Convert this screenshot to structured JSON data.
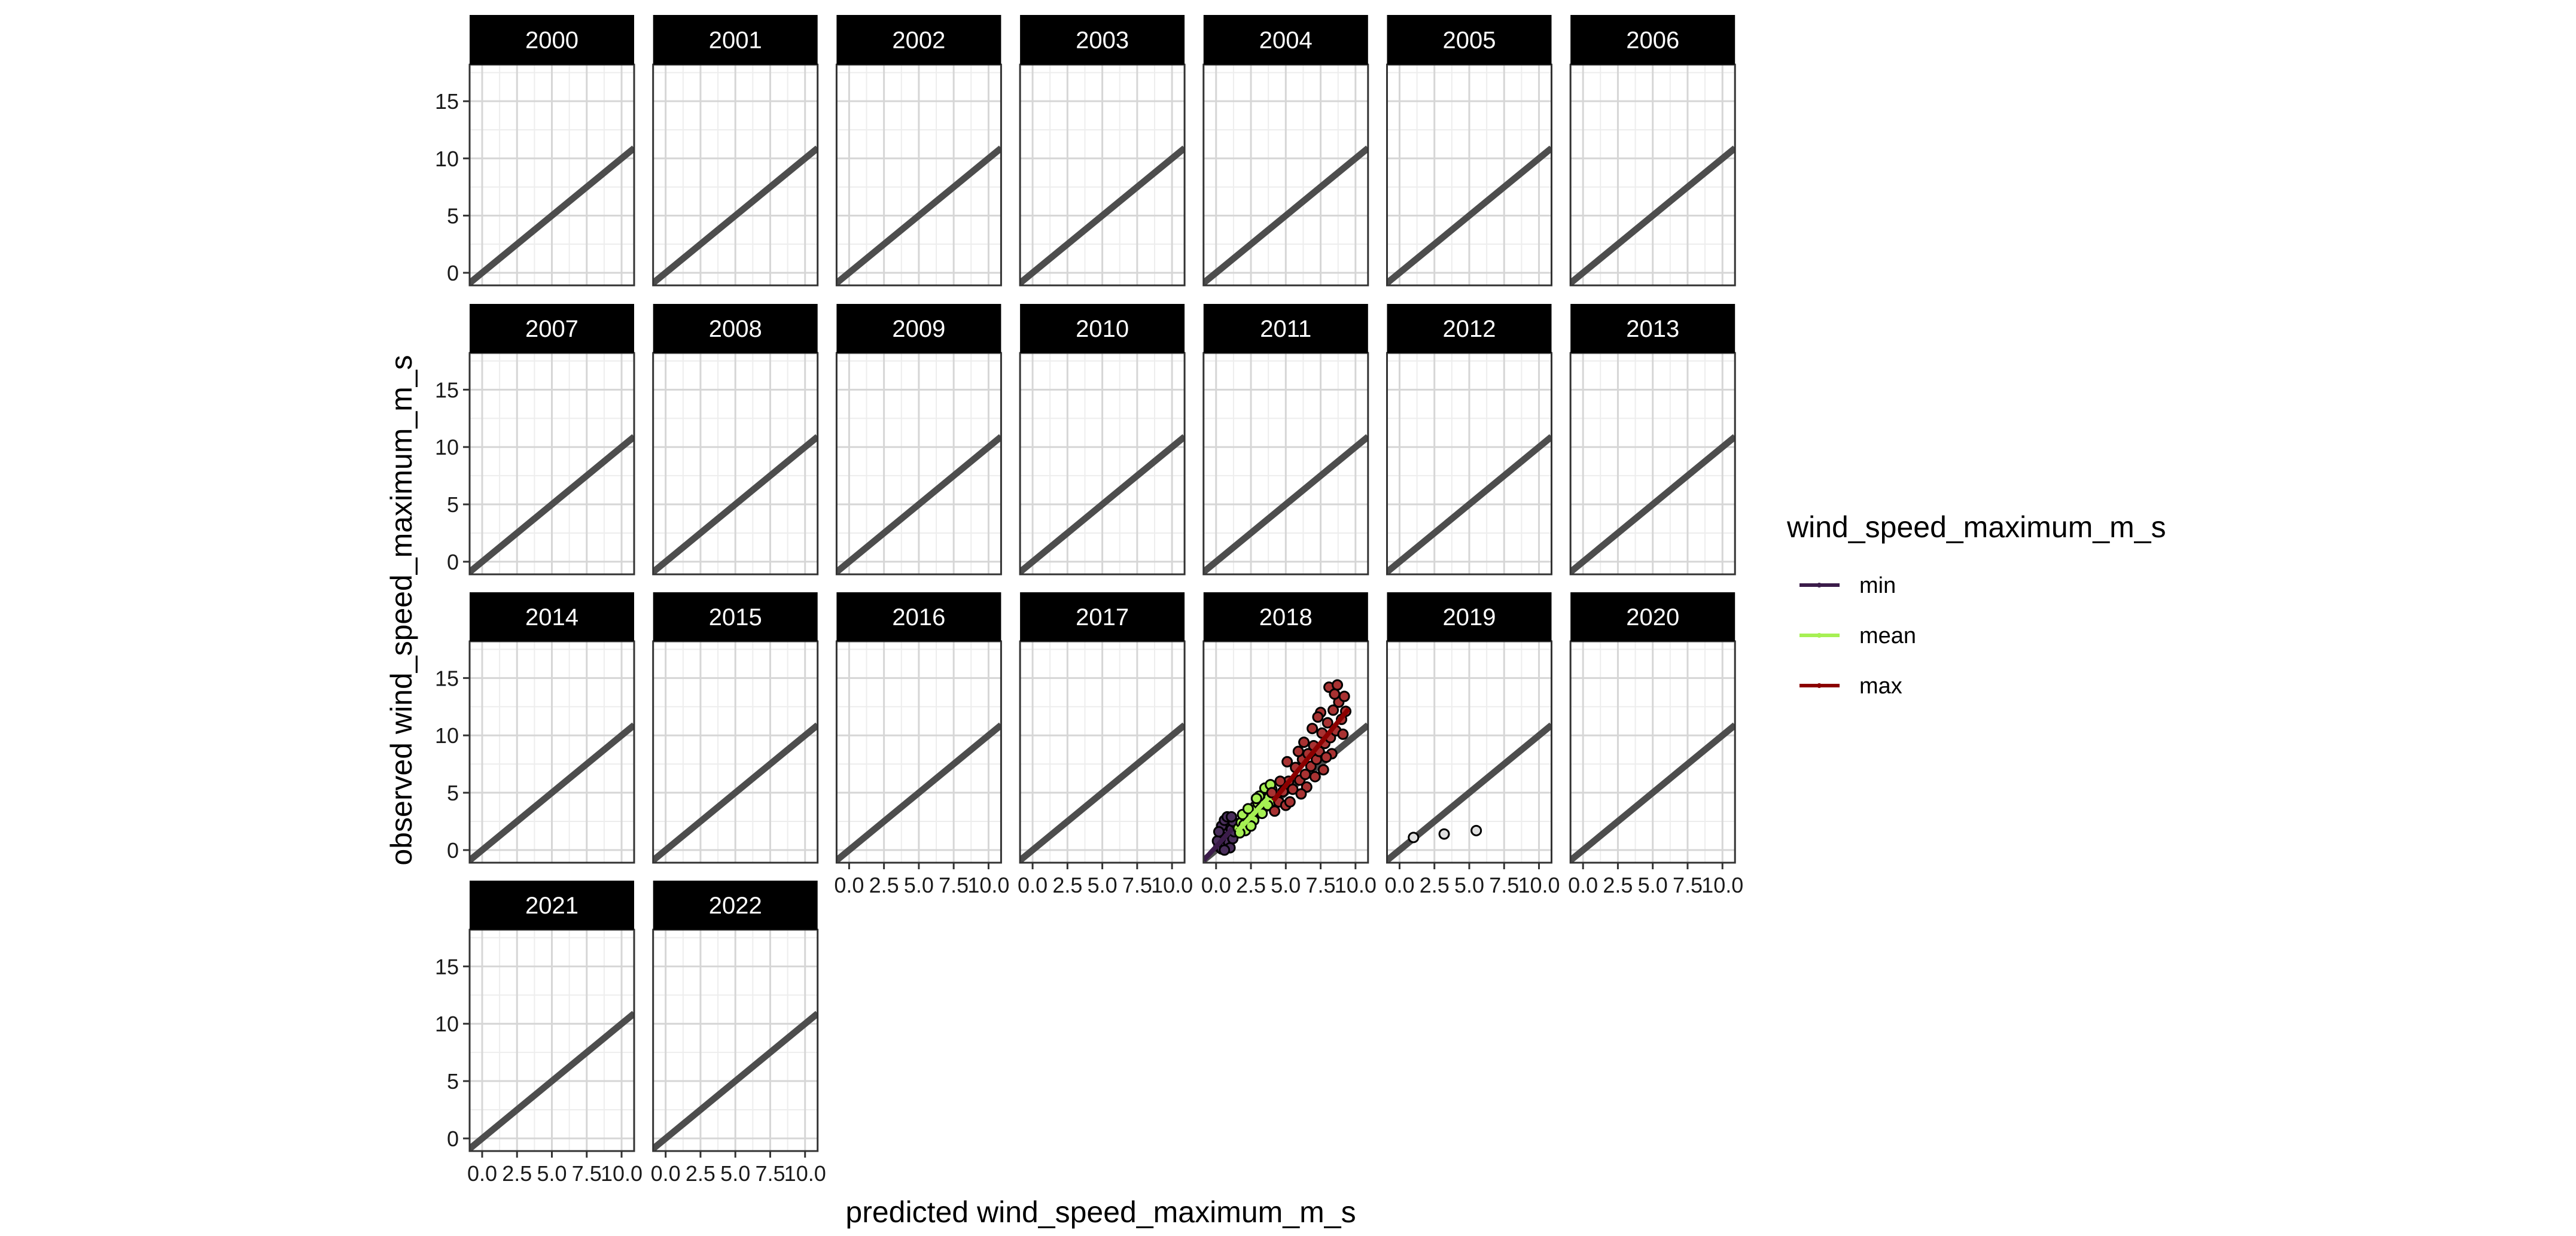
{
  "chart_data": {
    "type": "scatter",
    "facets": [
      "2000",
      "2001",
      "2002",
      "2003",
      "2004",
      "2005",
      "2006",
      "2007",
      "2008",
      "2009",
      "2010",
      "2011",
      "2012",
      "2013",
      "2014",
      "2015",
      "2016",
      "2017",
      "2018",
      "2019",
      "2020",
      "2021",
      "2022"
    ],
    "xlabel": "predicted wind_speed_maximum_m_s",
    "ylabel": "observed wind_speed_maximum_m_s",
    "xlim": [
      -0.9,
      10.9
    ],
    "ylim": [
      -1.1,
      18.2
    ],
    "x_ticks": [
      "0.0",
      "2.5",
      "5.0",
      "7.5",
      "10.0"
    ],
    "x_tick_values": [
      0,
      2.5,
      5,
      7.5,
      10
    ],
    "y_ticks": [
      "0",
      "5",
      "10",
      "15"
    ],
    "y_tick_values": [
      0,
      5,
      10,
      15
    ],
    "reference_line": {
      "slope": 1,
      "intercept": 0,
      "color": "#4d4d4d"
    },
    "grid": true,
    "legend": {
      "title": "wind_speed_maximum_m_s",
      "position": "right",
      "entries": [
        {
          "label": "min",
          "color": "#3b1c4a"
        },
        {
          "label": "mean",
          "color": "#a6f053"
        },
        {
          "label": "max",
          "color": "#8b0000"
        }
      ]
    },
    "series": [
      {
        "name": "min",
        "facet": "2018",
        "color": "#3b1c4a",
        "point_color": "#4a2f5c",
        "fit_line": [
          [
            -0.9,
            -0.9
          ],
          [
            1.2,
            1.9
          ]
        ],
        "points": [
          [
            0.2,
            0.3
          ],
          [
            0.4,
            0.1
          ],
          [
            0.5,
            0.6
          ],
          [
            0.6,
            0.9
          ],
          [
            0.7,
            0.4
          ],
          [
            0.8,
            1.2
          ],
          [
            0.9,
            0.7
          ],
          [
            1.0,
            1.5
          ],
          [
            0.3,
            1.0
          ],
          [
            0.5,
            1.6
          ],
          [
            0.7,
            1.9
          ],
          [
            0.9,
            2.2
          ],
          [
            1.1,
            1.8
          ],
          [
            1.2,
            2.5
          ],
          [
            0.4,
            2.1
          ],
          [
            0.6,
            2.6
          ],
          [
            0.8,
            2.9
          ],
          [
            1.0,
            0.2
          ],
          [
            1.2,
            1.0
          ],
          [
            0.1,
            0.8
          ],
          [
            1.3,
            1.6
          ],
          [
            0.2,
            1.6
          ],
          [
            1.1,
            2.9
          ],
          [
            0.6,
            0.0
          ]
        ]
      },
      {
        "name": "mean",
        "facet": "2018",
        "color": "#a6f053",
        "point_color": "#a6f053",
        "fit_line": [
          [
            1.5,
            1.6
          ],
          [
            4.1,
            5.0
          ]
        ],
        "points": [
          [
            1.6,
            1.9
          ],
          [
            1.8,
            2.4
          ],
          [
            2.0,
            2.2
          ],
          [
            2.2,
            2.9
          ],
          [
            2.4,
            3.3
          ],
          [
            2.6,
            3.0
          ],
          [
            2.8,
            3.8
          ],
          [
            3.0,
            4.1
          ],
          [
            3.2,
            3.6
          ],
          [
            3.4,
            4.4
          ],
          [
            3.6,
            4.9
          ],
          [
            3.8,
            4.6
          ],
          [
            4.0,
            5.3
          ],
          [
            1.9,
            3.1
          ],
          [
            2.3,
            3.6
          ],
          [
            2.7,
            2.6
          ],
          [
            3.1,
            4.7
          ],
          [
            3.5,
            5.4
          ],
          [
            3.9,
            5.7
          ],
          [
            2.1,
            1.7
          ],
          [
            2.5,
            2.1
          ],
          [
            3.3,
            3.2
          ],
          [
            1.7,
            1.5
          ],
          [
            4.1,
            4.3
          ],
          [
            2.9,
            4.5
          ],
          [
            3.7,
            3.9
          ]
        ]
      },
      {
        "name": "max",
        "facet": "2018",
        "color": "#8b0000",
        "point_color": "#a83232",
        "fit_line": [
          [
            4.1,
            4.3
          ],
          [
            9.5,
            12.3
          ]
        ],
        "points": [
          [
            4.2,
            3.4
          ],
          [
            4.5,
            4.2
          ],
          [
            4.8,
            5.1
          ],
          [
            5.0,
            3.9
          ],
          [
            5.2,
            6.0
          ],
          [
            5.5,
            5.3
          ],
          [
            5.7,
            7.2
          ],
          [
            6.0,
            6.1
          ],
          [
            6.2,
            7.9
          ],
          [
            6.4,
            6.6
          ],
          [
            6.6,
            8.4
          ],
          [
            6.8,
            7.3
          ],
          [
            7.0,
            9.1
          ],
          [
            7.2,
            7.9
          ],
          [
            7.4,
            8.6
          ],
          [
            7.6,
            10.2
          ],
          [
            7.8,
            9.3
          ],
          [
            8.0,
            11.1
          ],
          [
            8.2,
            9.8
          ],
          [
            8.4,
            12.2
          ],
          [
            8.6,
            10.4
          ],
          [
            8.8,
            12.9
          ],
          [
            9.0,
            11.4
          ],
          [
            9.2,
            13.4
          ],
          [
            4.6,
            6.0
          ],
          [
            5.3,
            4.2
          ],
          [
            5.9,
            8.6
          ],
          [
            6.5,
            5.5
          ],
          [
            7.1,
            6.4
          ],
          [
            7.7,
            7.0
          ],
          [
            8.3,
            8.4
          ],
          [
            6.9,
            10.6
          ],
          [
            7.5,
            12.0
          ],
          [
            8.1,
            14.2
          ],
          [
            8.7,
            14.4
          ],
          [
            9.1,
            10.1
          ],
          [
            5.1,
            7.7
          ],
          [
            6.3,
            9.4
          ],
          [
            7.3,
            11.6
          ],
          [
            8.5,
            13.6
          ],
          [
            4.0,
            5.0
          ],
          [
            6.1,
            4.9
          ],
          [
            7.9,
            8.1
          ],
          [
            9.3,
            12.1
          ]
        ]
      },
      {
        "name": "",
        "facet": "2019",
        "color": "#d3d3d3",
        "point_color": "#e0e0e0",
        "points": [
          [
            1.0,
            1.1
          ],
          [
            3.2,
            1.4
          ],
          [
            5.5,
            1.7
          ]
        ]
      }
    ]
  }
}
